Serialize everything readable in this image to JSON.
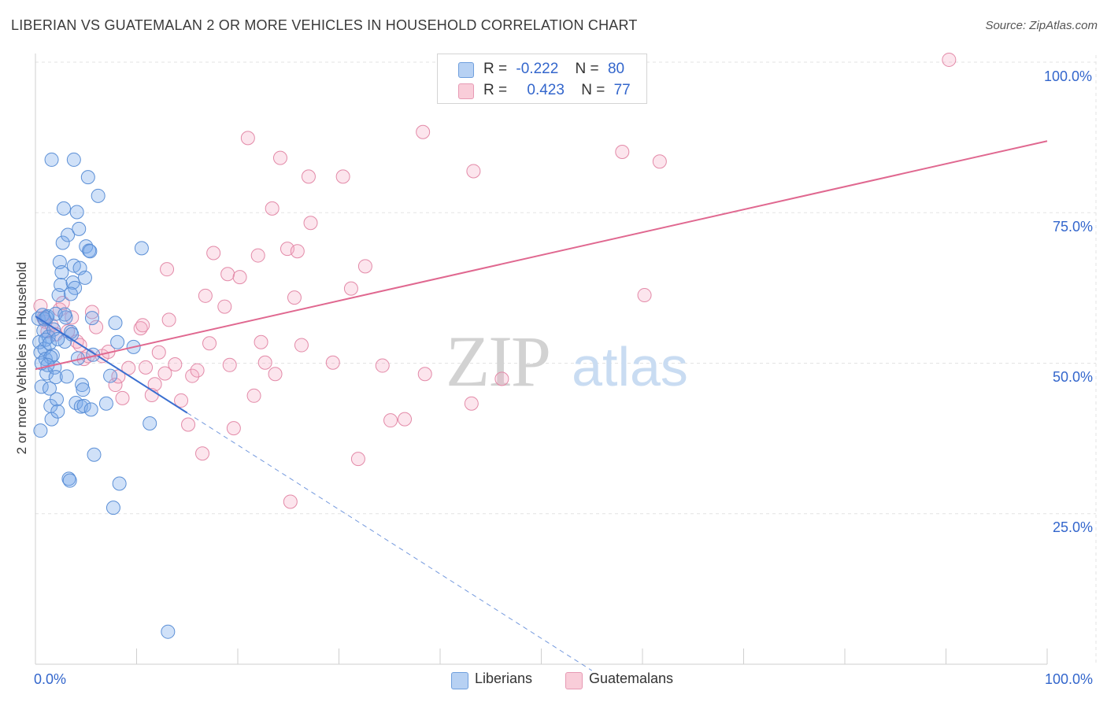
{
  "title": "LIBERIAN VS GUATEMALAN 2 OR MORE VEHICLES IN HOUSEHOLD CORRELATION CHART",
  "source": "Source: ZipAtlas.com",
  "watermark": {
    "zip": "ZIP",
    "atlas": "atlas"
  },
  "legend": {
    "r_label": "R =",
    "n_label": "N =",
    "rows": [
      {
        "name": "Liberians",
        "r": "-0.222",
        "n": "80",
        "fill": "#a9c8f0",
        "stroke": "#5b8fd6"
      },
      {
        "name": "Guatemalans",
        "r": "0.423",
        "n": "77",
        "fill": "#f7bfd0",
        "stroke": "#e07c9e"
      }
    ]
  },
  "axis": {
    "x_min_label": "0.0%",
    "x_max_label": "100.0%",
    "y_ticks": [
      "100.0%",
      "75.0%",
      "50.0%",
      "25.0%"
    ]
  },
  "colors": {
    "blue_fill": "rgba(120,170,235,0.35)",
    "blue_stroke": "#5b8fd6",
    "blue_line": "#3a6fd0",
    "pink_fill": "rgba(245,170,195,0.30)",
    "pink_stroke": "#e38aa8",
    "pink_line": "#e06890",
    "grid": "#e3e3e3",
    "axis_text": "#3366cc"
  },
  "chart_data": {
    "type": "scatter",
    "title": "LIBERIAN VS GUATEMALAN 2 OR MORE VEHICLES IN HOUSEHOLD CORRELATION CHART",
    "xlabel": "",
    "ylabel": "2 or more Vehicles in Household",
    "xlim": [
      0,
      100
    ],
    "ylim": [
      0,
      100
    ],
    "grid": true,
    "series": [
      {
        "name": "Liberians",
        "points": [
          [
            0.3,
            57.4
          ],
          [
            0.4,
            53.5
          ],
          [
            0.5,
            51.8
          ],
          [
            0.6,
            46.1
          ],
          [
            0.5,
            38.8
          ],
          [
            0.8,
            55.4
          ],
          [
            0.9,
            52.4
          ],
          [
            1.0,
            50.7
          ],
          [
            1.2,
            57.8
          ],
          [
            1.1,
            48.3
          ],
          [
            1.3,
            54.4
          ],
          [
            1.4,
            45.8
          ],
          [
            1.5,
            42.9
          ],
          [
            1.6,
            40.7
          ],
          [
            1.7,
            51.3
          ],
          [
            1.8,
            55.6
          ],
          [
            1.9,
            49.3
          ],
          [
            2.0,
            47.7
          ],
          [
            2.1,
            44.0
          ],
          [
            2.2,
            42.0
          ],
          [
            2.3,
            61.3
          ],
          [
            2.4,
            66.8
          ],
          [
            2.5,
            63.0
          ],
          [
            2.6,
            65.1
          ],
          [
            2.7,
            70.0
          ],
          [
            2.8,
            75.7
          ],
          [
            2.9,
            53.6
          ],
          [
            3.0,
            57.6
          ],
          [
            3.1,
            47.8
          ],
          [
            3.2,
            71.3
          ],
          [
            3.3,
            30.8
          ],
          [
            3.4,
            30.5
          ],
          [
            3.5,
            55.2
          ],
          [
            3.6,
            54.8
          ],
          [
            3.7,
            63.4
          ],
          [
            3.8,
            66.2
          ],
          [
            3.9,
            62.5
          ],
          [
            4.0,
            43.4
          ],
          [
            4.1,
            75.1
          ],
          [
            4.2,
            50.8
          ],
          [
            4.3,
            72.3
          ],
          [
            4.4,
            65.8
          ],
          [
            4.5,
            42.8
          ],
          [
            4.6,
            46.4
          ],
          [
            4.7,
            45.6
          ],
          [
            4.8,
            42.9
          ],
          [
            4.9,
            64.2
          ],
          [
            5.0,
            69.4
          ],
          [
            5.2,
            80.9
          ],
          [
            5.3,
            68.7
          ],
          [
            5.4,
            68.6
          ],
          [
            5.5,
            42.3
          ],
          [
            5.6,
            57.5
          ],
          [
            5.7,
            51.4
          ],
          [
            5.8,
            34.8
          ],
          [
            6.2,
            77.8
          ],
          [
            7.0,
            43.3
          ],
          [
            7.4,
            47.9
          ],
          [
            7.7,
            26.0
          ],
          [
            7.9,
            56.7
          ],
          [
            8.1,
            53.5
          ],
          [
            8.3,
            30.0
          ],
          [
            9.7,
            52.7
          ],
          [
            10.5,
            69.1
          ],
          [
            11.3,
            40.0
          ],
          [
            13.1,
            5.4
          ],
          [
            1.6,
            83.8
          ],
          [
            3.8,
            83.8
          ],
          [
            1.0,
            53.9
          ],
          [
            1.4,
            53.3
          ],
          [
            0.7,
            58.0
          ],
          [
            0.9,
            57.3
          ],
          [
            1.1,
            57.6
          ],
          [
            2.0,
            58.2
          ],
          [
            2.2,
            54.0
          ],
          [
            1.5,
            51.0
          ],
          [
            0.6,
            50.0
          ],
          [
            1.2,
            49.7
          ],
          [
            3.5,
            61.5
          ],
          [
            2.9,
            58.1
          ]
        ]
      },
      {
        "name": "Guatemalans",
        "points": [
          [
            0.5,
            59.5
          ],
          [
            0.8,
            57.5
          ],
          [
            1.0,
            56.9
          ],
          [
            1.2,
            55.3
          ],
          [
            1.6,
            56.3
          ],
          [
            2.0,
            54.8
          ],
          [
            2.4,
            58.9
          ],
          [
            2.7,
            60.0
          ],
          [
            3.2,
            55.3
          ],
          [
            3.6,
            57.6
          ],
          [
            4.1,
            53.6
          ],
          [
            4.4,
            53.0
          ],
          [
            4.8,
            50.7
          ],
          [
            5.2,
            51.2
          ],
          [
            5.6,
            58.5
          ],
          [
            6.0,
            56.0
          ],
          [
            6.6,
            51.2
          ],
          [
            7.2,
            51.9
          ],
          [
            7.9,
            46.4
          ],
          [
            8.2,
            47.8
          ],
          [
            8.6,
            44.2
          ],
          [
            9.2,
            49.2
          ],
          [
            10.4,
            55.8
          ],
          [
            10.6,
            56.3
          ],
          [
            10.9,
            49.3
          ],
          [
            11.5,
            44.7
          ],
          [
            11.8,
            46.5
          ],
          [
            12.2,
            51.8
          ],
          [
            12.8,
            48.3
          ],
          [
            13.0,
            65.6
          ],
          [
            13.2,
            57.2
          ],
          [
            13.8,
            49.8
          ],
          [
            14.4,
            43.8
          ],
          [
            15.1,
            39.8
          ],
          [
            15.5,
            47.9
          ],
          [
            16.0,
            48.8
          ],
          [
            16.5,
            35.0
          ],
          [
            16.8,
            61.2
          ],
          [
            17.2,
            53.3
          ],
          [
            17.6,
            68.3
          ],
          [
            18.7,
            59.4
          ],
          [
            19.0,
            64.8
          ],
          [
            19.2,
            49.7
          ],
          [
            19.6,
            39.2
          ],
          [
            20.2,
            64.3
          ],
          [
            21.0,
            87.4
          ],
          [
            21.6,
            44.6
          ],
          [
            22.0,
            67.9
          ],
          [
            22.3,
            53.5
          ],
          [
            22.7,
            50.1
          ],
          [
            23.4,
            75.7
          ],
          [
            23.7,
            48.2
          ],
          [
            24.2,
            84.1
          ],
          [
            24.9,
            69.0
          ],
          [
            25.2,
            27.0
          ],
          [
            25.6,
            60.9
          ],
          [
            25.9,
            68.6
          ],
          [
            26.3,
            53.0
          ],
          [
            27.0,
            81.0
          ],
          [
            27.2,
            73.3
          ],
          [
            29.4,
            50.1
          ],
          [
            30.4,
            81.0
          ],
          [
            31.2,
            62.4
          ],
          [
            31.9,
            34.1
          ],
          [
            32.6,
            66.1
          ],
          [
            34.3,
            49.6
          ],
          [
            35.1,
            40.5
          ],
          [
            36.5,
            40.7
          ],
          [
            38.3,
            88.4
          ],
          [
            38.5,
            48.2
          ],
          [
            43.1,
            43.3
          ],
          [
            43.3,
            81.9
          ],
          [
            46.1,
            47.4
          ],
          [
            58.0,
            85.1
          ],
          [
            60.2,
            61.3
          ],
          [
            61.7,
            83.5
          ],
          [
            90.3,
            100.4
          ]
        ]
      }
    ],
    "trendlines": [
      {
        "series": "Liberians",
        "solid_x": [
          0,
          15
        ],
        "dashed_x": [
          15,
          55
        ],
        "y_at_0": 57.8,
        "slope": -1.07
      },
      {
        "series": "Guatemalans",
        "solid_x": [
          0,
          100
        ],
        "y_at_0": 49.0,
        "y_at_100": 86.9
      }
    ]
  }
}
